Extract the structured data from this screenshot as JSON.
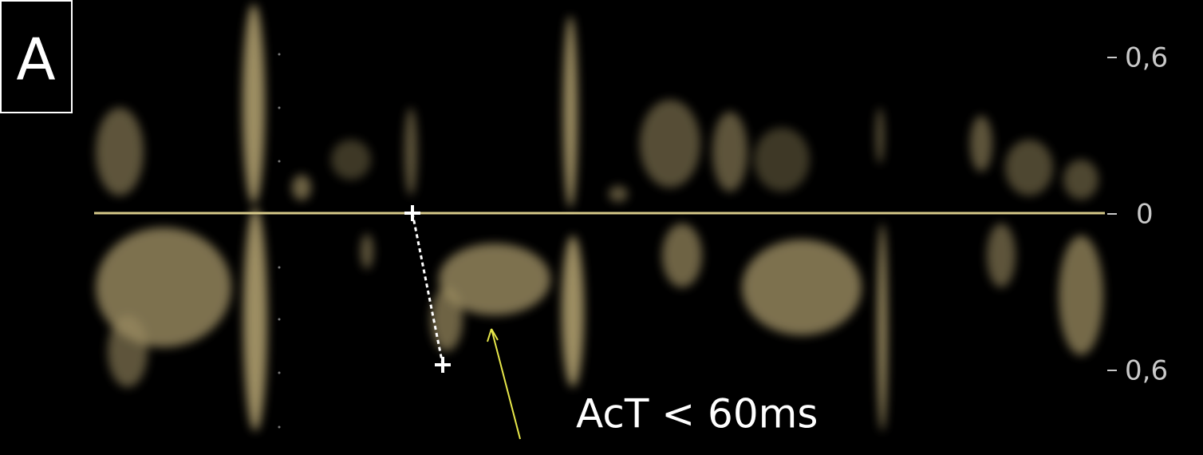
{
  "panel_label": "A",
  "scale": {
    "labels": [
      "0,6",
      "0",
      "0,6"
    ]
  },
  "annotation": "AcT < 60ms"
}
